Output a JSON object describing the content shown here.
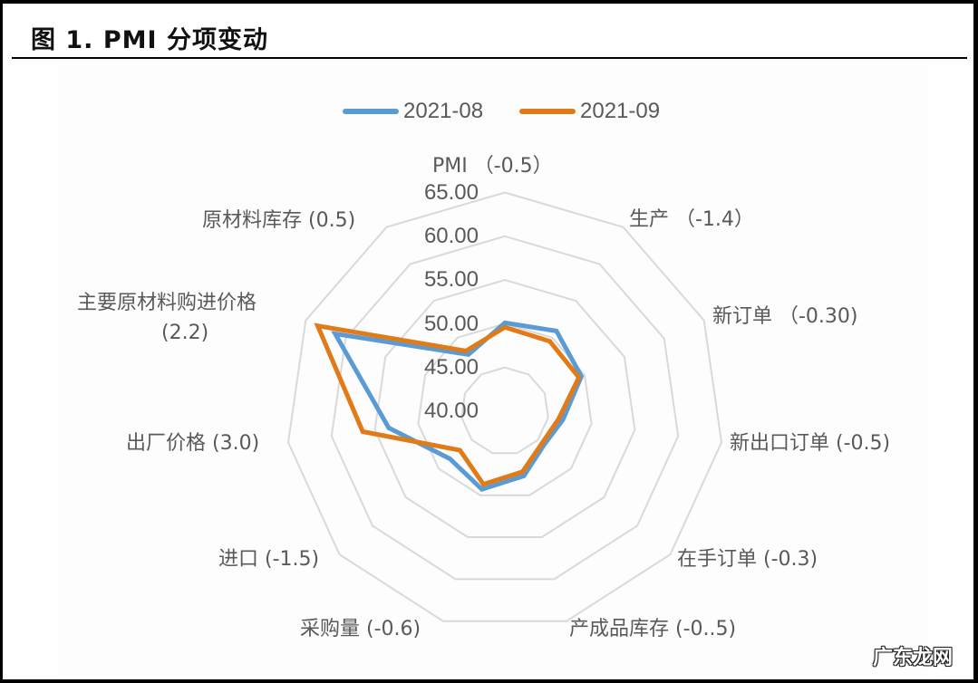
{
  "title": "图 1. PMI 分项变动",
  "legend": [
    {
      "label": "2021-08",
      "color": "#5b9bd5"
    },
    {
      "label": "2021-09",
      "color": "#e07b17"
    }
  ],
  "axis_labels": [
    "PMI （-0.5）",
    "生产 （-1.4）",
    "新订单 （-0.30)",
    "新出口订单 (-0.5)",
    "在手订单 (-0.3)",
    "产成品库存 (-0..5)",
    "采购量 (-0.6)",
    "进口 (-1.5)",
    "出厂价格 (3.0)",
    "主要原材料购进价格",
    "原材料库存 (0.5)"
  ],
  "axis_label_extra": {
    "label9_line2": "(2.2)"
  },
  "ticks": [
    "65.00",
    "60.00",
    "55.00",
    "50.00",
    "45.00",
    "40.00"
  ],
  "watermark": "广东龙网",
  "chart_data": {
    "type": "radar",
    "title": "图 1. PMI 分项变动",
    "categories": [
      "PMI （-0.5）",
      "生产 （-1.4）",
      "新订单 （-0.30)",
      "新出口订单 (-0.5)",
      "在手订单 (-0.3)",
      "产成品库存 (-0..5)",
      "采购量 (-0.6)",
      "进口 (-1.5)",
      "出厂价格 (3.0)",
      "主要原材料购进价格 (2.2)",
      "原材料库存 (0.5)"
    ],
    "series": [
      {
        "name": "2021-08",
        "color": "#5b9bd5",
        "values": [
          50.1,
          50.9,
          49.6,
          46.7,
          45.9,
          47.7,
          49.3,
          48.3,
          53.4,
          61.3,
          47.7
        ]
      },
      {
        "name": "2021-09",
        "color": "#e07b17",
        "values": [
          49.6,
          49.5,
          49.3,
          46.2,
          45.6,
          47.2,
          48.7,
          46.8,
          56.4,
          63.5,
          48.2
        ]
      }
    ],
    "rlim": [
      40,
      65
    ],
    "rticks": [
      40,
      45,
      50,
      55,
      60,
      65
    ],
    "grid": true,
    "legend_position": "top"
  }
}
